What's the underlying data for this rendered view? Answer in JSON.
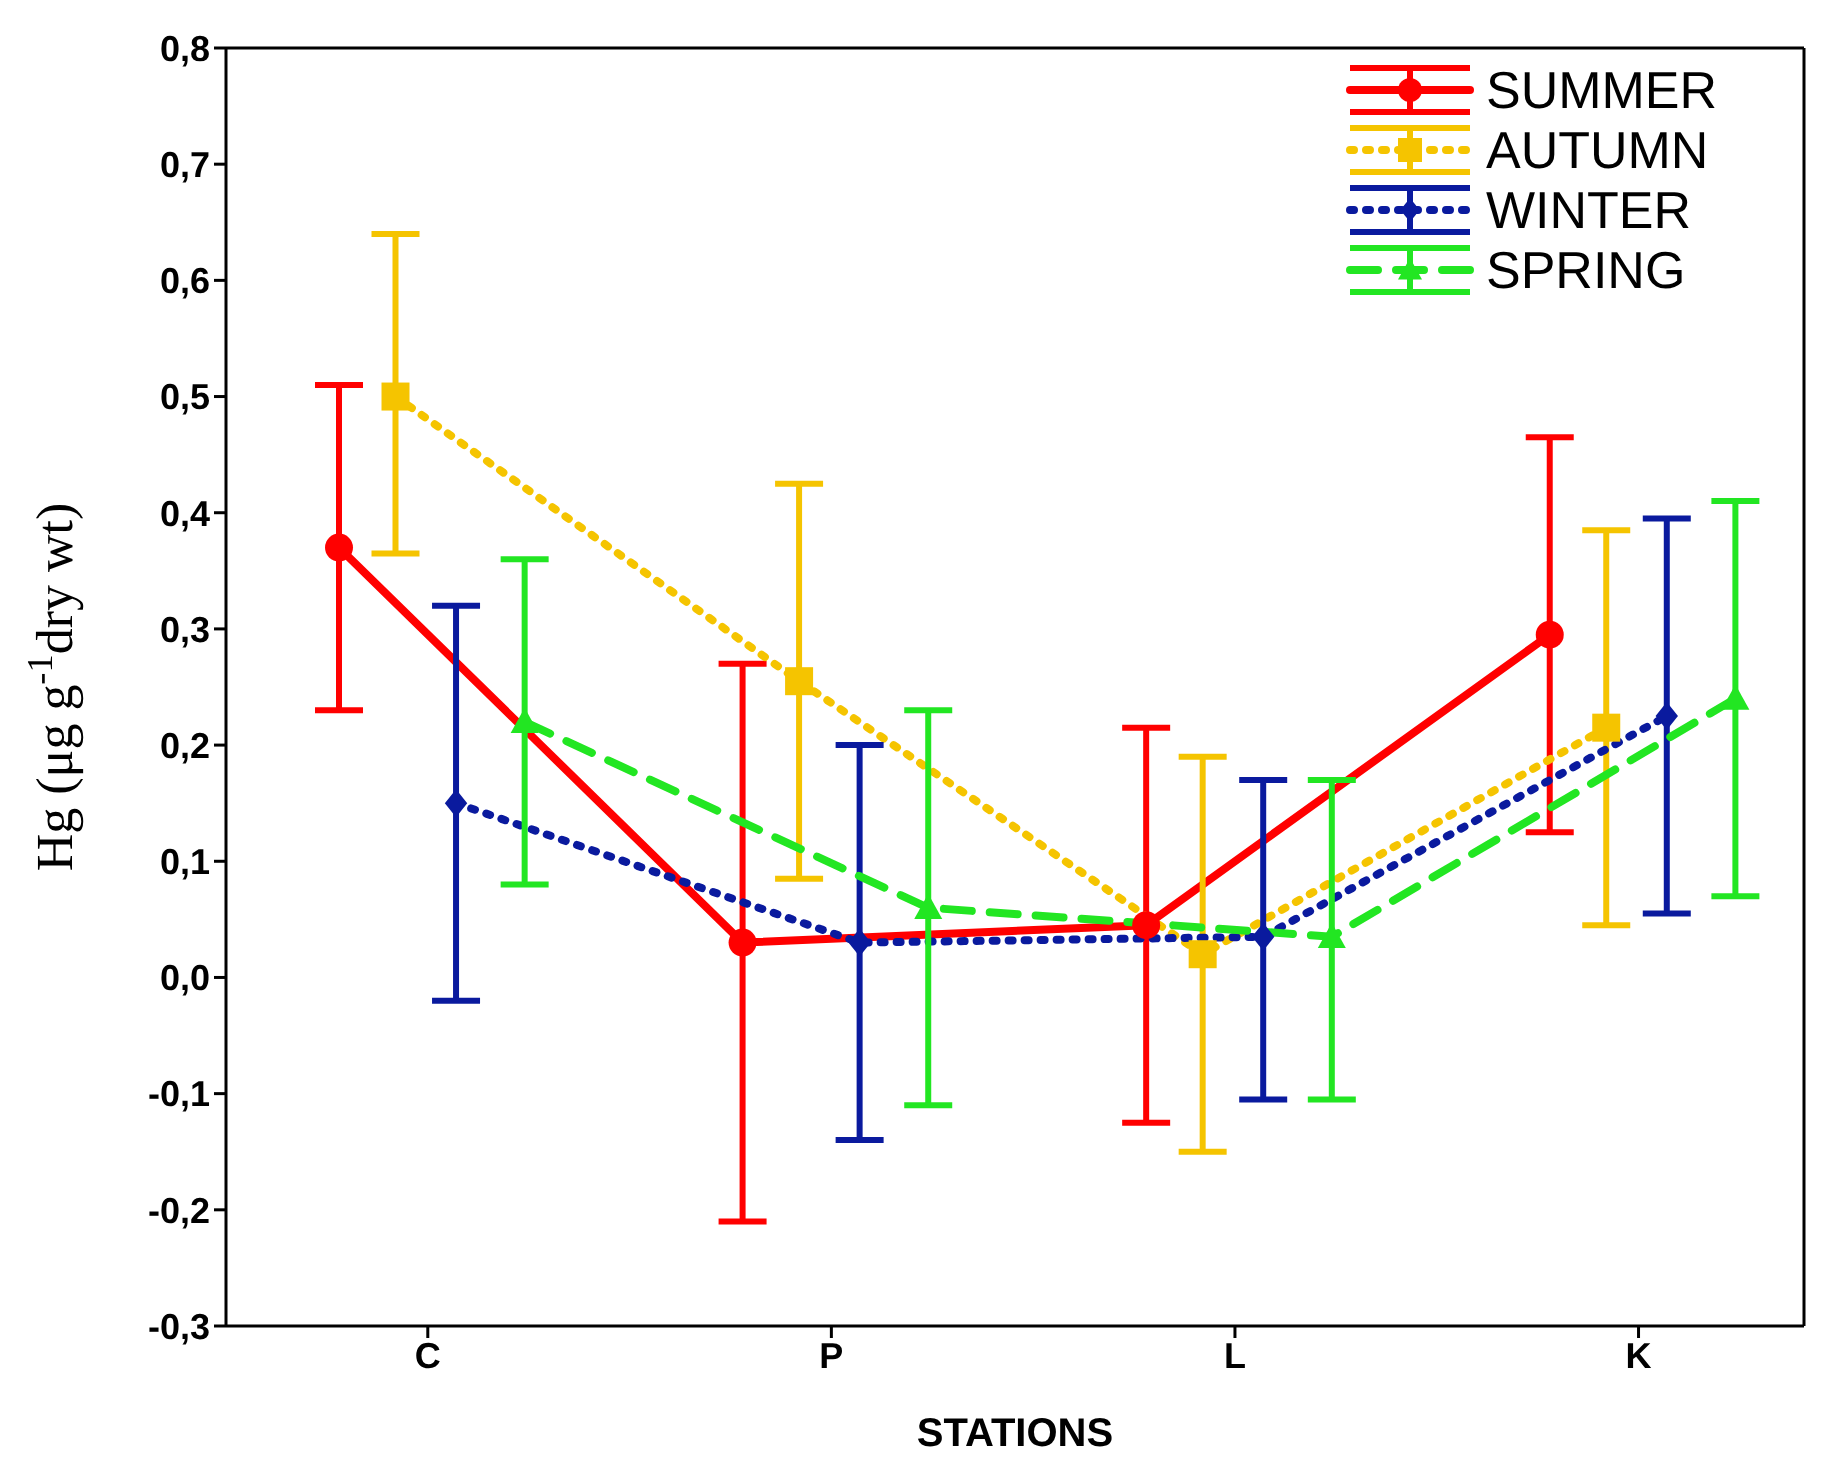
{
  "chart_data": {
    "type": "line",
    "xlabel": "STATIONS",
    "ylabel": "Hg (μg g$^{-1}$dry wt)",
    "categories": [
      "C",
      "P",
      "L",
      "K"
    ],
    "ylim": [
      -0.3,
      0.8
    ],
    "yticks": [
      {
        "value": -0.3,
        "label": "-0,3"
      },
      {
        "value": -0.2,
        "label": "-0,2"
      },
      {
        "value": -0.1,
        "label": "-0,1"
      },
      {
        "value": 0,
        "label": "0,0"
      },
      {
        "value": 0.1,
        "label": "0,1"
      },
      {
        "value": 0.2,
        "label": "0,2"
      },
      {
        "value": 0.3,
        "label": "0,3"
      },
      {
        "value": 0.4,
        "label": "0,4"
      },
      {
        "value": 0.5,
        "label": "0,5"
      },
      {
        "value": 0.6,
        "label": "0,6"
      },
      {
        "value": 0.7,
        "label": "0,7"
      },
      {
        "value": 0.8,
        "label": "0,8"
      }
    ],
    "grid": false,
    "legend": "top right",
    "series": [
      {
        "name": "SUMMER",
        "color": "#ff0000",
        "marker": "circle",
        "line_style": "solid",
        "values": [
          0.37,
          0.03,
          0.045,
          0.295
        ],
        "errors": [
          [
            0.23,
            0.51
          ],
          [
            -0.21,
            0.27
          ],
          [
            -0.125,
            0.215
          ],
          [
            0.125,
            0.465
          ]
        ]
      },
      {
        "name": "AUTUMN",
        "color": "#f5c400",
        "marker": "square",
        "line_style": "dotted",
        "values": [
          0.5,
          0.255,
          0.02,
          0.215
        ],
        "errors": [
          [
            0.365,
            0.64
          ],
          [
            0.085,
            0.425
          ],
          [
            -0.15,
            0.19
          ],
          [
            0.045,
            0.385
          ]
        ]
      },
      {
        "name": "WINTER",
        "color": "#0a1a9e",
        "marker": "diamond",
        "line_style": "dotted",
        "values": [
          0.15,
          0.03,
          0.035,
          0.225
        ],
        "errors": [
          [
            -0.02,
            0.32
          ],
          [
            -0.14,
            0.2
          ],
          [
            -0.105,
            0.17
          ],
          [
            0.055,
            0.395
          ]
        ]
      },
      {
        "name": "SPRING",
        "color": "#22e622",
        "marker": "triangle",
        "line_style": "dashed",
        "values": [
          0.22,
          0.06,
          0.035,
          0.24
        ],
        "errors": [
          [
            0.08,
            0.36
          ],
          [
            -0.11,
            0.23
          ],
          [
            -0.105,
            0.17
          ],
          [
            0.07,
            0.41
          ]
        ]
      }
    ]
  }
}
